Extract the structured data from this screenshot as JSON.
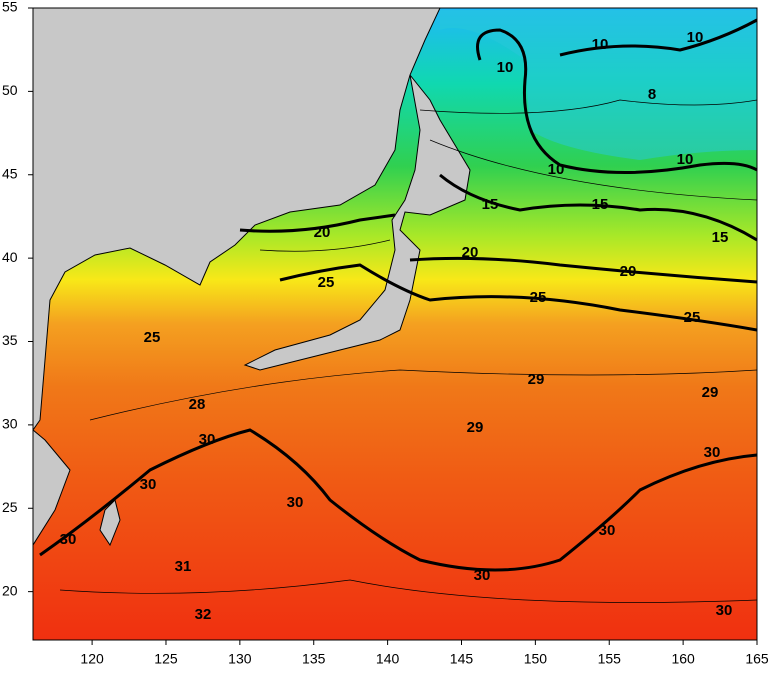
{
  "map": {
    "xlim": [
      116,
      165
    ],
    "ylim": [
      17.1,
      55
    ],
    "xticks": [
      120,
      125,
      130,
      135,
      140,
      145,
      150,
      155,
      160,
      165
    ],
    "yticks": [
      20,
      25,
      30,
      35,
      40,
      45,
      50,
      55
    ],
    "contour_labels": [
      10,
      10,
      10,
      8,
      10,
      10,
      15,
      15,
      15,
      20,
      20,
      20,
      25,
      25,
      25,
      25,
      28,
      29,
      29,
      29,
      30,
      30,
      30,
      30,
      30,
      30,
      30,
      30,
      31,
      32
    ]
  }
}
